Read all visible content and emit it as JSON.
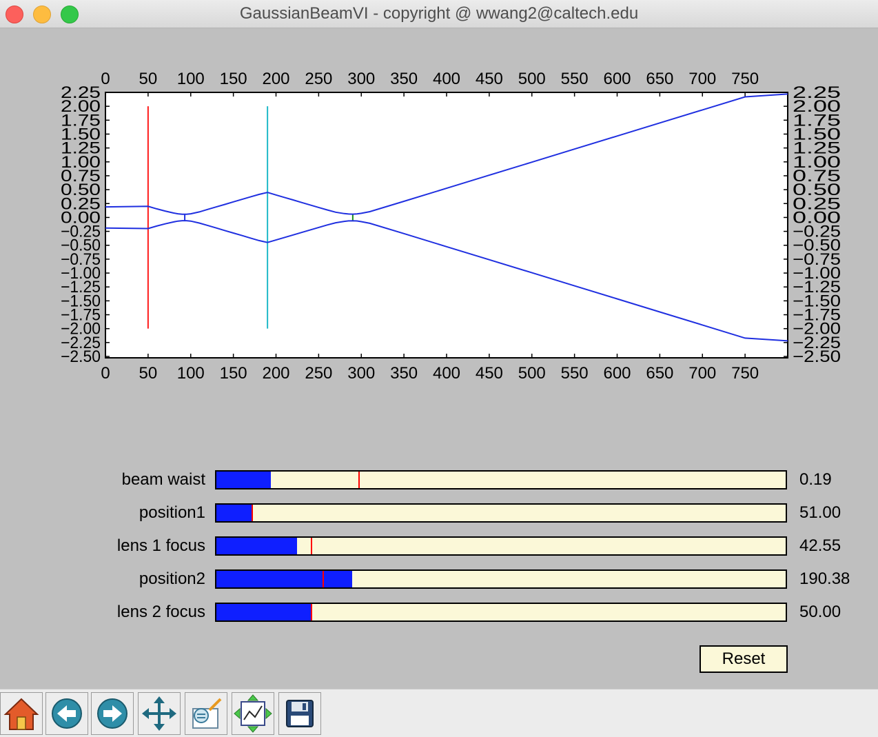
{
  "window": {
    "title": "GaussianBeamVI - copyright @ wwang2@caltech.edu"
  },
  "chart_data": {
    "type": "line",
    "x_ticks": [
      0,
      50,
      100,
      150,
      200,
      250,
      300,
      350,
      400,
      450,
      500,
      550,
      600,
      650,
      700,
      750
    ],
    "y_ticks": [
      2.25,
      2.0,
      1.75,
      1.5,
      1.25,
      1.0,
      0.75,
      0.5,
      0.25,
      0.0,
      -0.25,
      -0.5,
      -0.75,
      -1.0,
      -1.25,
      -1.5,
      -1.75,
      -2.0,
      -2.25,
      -2.5
    ],
    "y_tick_labels": [
      "2.25",
      "2.00",
      "1.75",
      "1.50",
      "1.25",
      "1.00",
      "0.75",
      "0.50",
      "0.25",
      "0.00",
      "−0.25",
      "−0.50",
      "−0.75",
      "−1.00",
      "−1.25",
      "−1.50",
      "−1.75",
      "−2.00",
      "−2.25",
      "−2.50"
    ],
    "xlim": [
      0,
      800
    ],
    "ylim": [
      -2.5,
      2.25
    ],
    "grid": false,
    "series": [
      {
        "color": "#1f2fe0",
        "x": [
          0,
          50,
          60,
          70,
          80,
          85,
          90,
          95,
          100,
          110,
          120,
          130,
          140,
          150,
          160,
          170,
          180,
          190
        ],
        "y": [
          0.19,
          0.2,
          0.155,
          0.115,
          0.08,
          0.066,
          0.058,
          0.058,
          0.066,
          0.1,
          0.145,
          0.19,
          0.235,
          0.28,
          0.325,
          0.37,
          0.415,
          0.45
        ]
      },
      {
        "color": "#1f2fe0",
        "x": [
          190,
          200,
          210,
          220,
          230,
          240,
          250,
          260,
          270,
          280,
          285,
          290,
          295,
          300,
          310,
          350,
          400,
          450,
          500,
          550,
          600,
          650,
          700,
          750,
          800
        ],
        "y": [
          0.45,
          0.405,
          0.36,
          0.315,
          0.27,
          0.225,
          0.18,
          0.135,
          0.095,
          0.07,
          0.062,
          0.06,
          0.063,
          0.075,
          0.105,
          0.29,
          0.525,
          0.76,
          0.995,
          1.23,
          1.465,
          1.7,
          1.935,
          2.17,
          2.22
        ]
      },
      {
        "color": "#1f2fe0",
        "x": [
          0,
          50,
          60,
          70,
          80,
          85,
          90,
          95,
          100,
          110,
          120,
          130,
          140,
          150,
          160,
          170,
          180,
          190
        ],
        "y": [
          -0.19,
          -0.2,
          -0.155,
          -0.115,
          -0.08,
          -0.066,
          -0.058,
          -0.058,
          -0.066,
          -0.1,
          -0.145,
          -0.19,
          -0.235,
          -0.28,
          -0.325,
          -0.37,
          -0.415,
          -0.45
        ]
      },
      {
        "color": "#1f2fe0",
        "x": [
          190,
          200,
          210,
          220,
          230,
          240,
          250,
          260,
          270,
          280,
          285,
          290,
          295,
          300,
          310,
          350,
          400,
          450,
          500,
          550,
          600,
          650,
          700,
          750,
          800
        ],
        "y": [
          -0.45,
          -0.405,
          -0.36,
          -0.315,
          -0.27,
          -0.225,
          -0.18,
          -0.135,
          -0.095,
          -0.07,
          -0.062,
          -0.06,
          -0.063,
          -0.075,
          -0.105,
          -0.29,
          -0.525,
          -0.76,
          -0.995,
          -1.23,
          -1.465,
          -1.7,
          -1.935,
          -2.17,
          -2.22
        ]
      }
    ],
    "vertical_lines": [
      {
        "x": 50,
        "y_from": -2.0,
        "y_to": 2.0,
        "color": "#ff1a1a"
      },
      {
        "x": 190,
        "y_from": -2.0,
        "y_to": 2.0,
        "color": "#1fb8c8"
      },
      {
        "x": 93,
        "y_from": -0.06,
        "y_to": 0.06,
        "color": "#1f2fe0"
      },
      {
        "x": 290,
        "y_from": -0.06,
        "y_to": 0.06,
        "color": "#1a8f1a"
      }
    ]
  },
  "sliders": [
    {
      "label": "beam waist",
      "value": "0.19",
      "fill": 0.096,
      "init": 0.25
    },
    {
      "label": "position1",
      "value": "51.00",
      "fill": 0.063,
      "init": 0.063
    },
    {
      "label": "lens 1 focus",
      "value": "42.55",
      "fill": 0.142,
      "init": 0.167
    },
    {
      "label": "position2",
      "value": "190.38",
      "fill": 0.238,
      "init": 0.188
    },
    {
      "label": "lens 2 focus",
      "value": "50.00",
      "fill": 0.167,
      "init": 0.167
    }
  ],
  "reset_label": "Reset",
  "toolbar": {
    "items": [
      {
        "name": "home-button",
        "icon": "home-icon"
      },
      {
        "name": "back-button",
        "icon": "back-arrow-icon"
      },
      {
        "name": "forward-button",
        "icon": "forward-arrow-icon"
      },
      {
        "name": "pan-button",
        "icon": "move-icon"
      },
      {
        "name": "zoom-button",
        "icon": "zoom-to-rect-icon"
      },
      {
        "name": "subplots-button",
        "icon": "subplots-icon"
      },
      {
        "name": "save-button",
        "icon": "floppy-disk-icon"
      }
    ]
  }
}
